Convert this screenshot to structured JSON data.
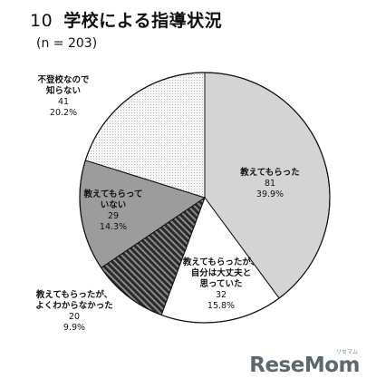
{
  "header": {
    "number": "10",
    "title": "学校による指導状況",
    "n_note": "(n = 203)"
  },
  "chart_data": {
    "type": "pie",
    "title": "学校による指導状況",
    "slices": [
      {
        "label": [
          "教えてもらった"
        ],
        "count": "81",
        "percent": "39.9%",
        "value": 39.9,
        "color": "#d4d4d4",
        "pattern": "none"
      },
      {
        "label": [
          "教えてもらったが、",
          "自分は大丈夫と",
          "思っていた"
        ],
        "count": "32",
        "percent": "15.8%",
        "value": 15.8,
        "color": "#ffffff",
        "pattern": "none"
      },
      {
        "label": [
          "教えてもらったが、",
          "よくわからなかった"
        ],
        "count": "20",
        "percent": "9.9%",
        "value": 9.9,
        "color": "#333333",
        "pattern": "diagonal"
      },
      {
        "label": [
          "教えてもらって",
          "いない"
        ],
        "count": "29",
        "percent": "14.3%",
        "value": 14.3,
        "color": "#9c9c9c",
        "pattern": "none"
      },
      {
        "label": [
          "不登校なので",
          "知らない"
        ],
        "count": "41",
        "percent": "20.2%",
        "value": 20.2,
        "color": "#f2f2f2",
        "pattern": "dots"
      }
    ]
  },
  "logo": {
    "text": "ReseMom",
    "kana": "リセマム"
  }
}
